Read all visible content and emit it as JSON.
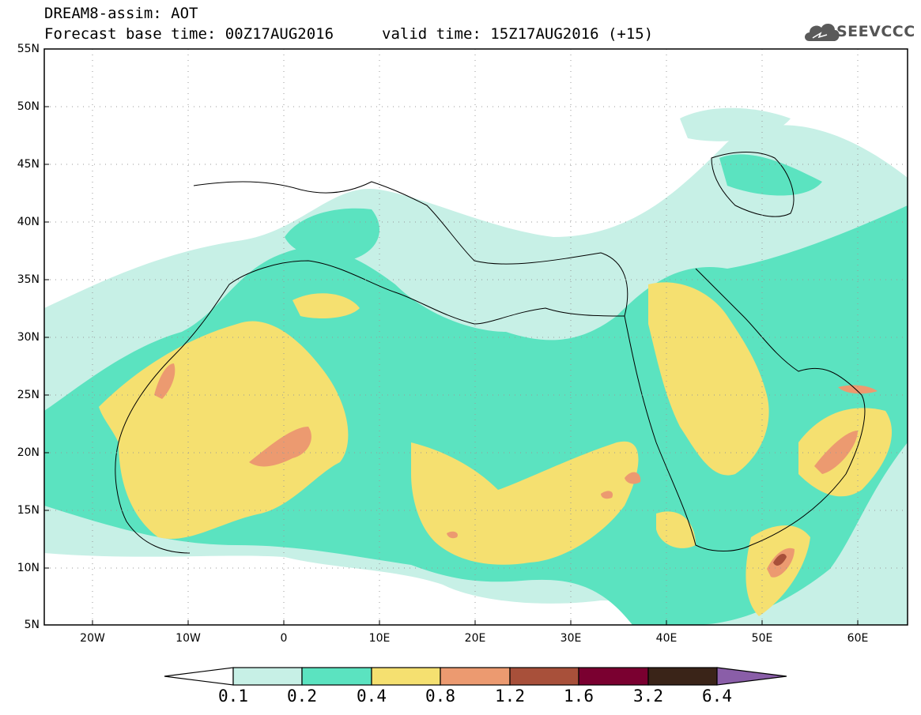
{
  "header": {
    "title": "DREAM8-assim: AOT",
    "base_time": "Forecast base time: 00Z17AUG2016",
    "valid_time": "valid time: 15Z17AUG2016 (+15)"
  },
  "logo": {
    "text": "SEEVCCC",
    "icon": "cloud-icon"
  },
  "map": {
    "lat_labels": [
      "55N",
      "50N",
      "45N",
      "40N",
      "35N",
      "30N",
      "25N",
      "20N",
      "15N",
      "10N",
      "5N"
    ],
    "lon_labels": [
      "20W",
      "10W",
      "0",
      "10E",
      "20E",
      "30E",
      "40E",
      "50E",
      "60E"
    ],
    "grid": true
  },
  "colorbar": {
    "labels": [
      "0.1",
      "0.2",
      "0.4",
      "0.8",
      "1.2",
      "1.6",
      "3.2",
      "6.4"
    ],
    "colors": [
      "#ffffff",
      "#c7f0e6",
      "#5be3c0",
      "#f5e070",
      "#ec9a70",
      "#a8503a",
      "#7a0030",
      "#3a2418",
      "#8a5ea8"
    ]
  },
  "colors": {
    "class1": "#c7f0e6",
    "class2": "#5be3c0",
    "class3": "#f5e070",
    "class4": "#ec9a70",
    "class5": "#a8503a"
  }
}
